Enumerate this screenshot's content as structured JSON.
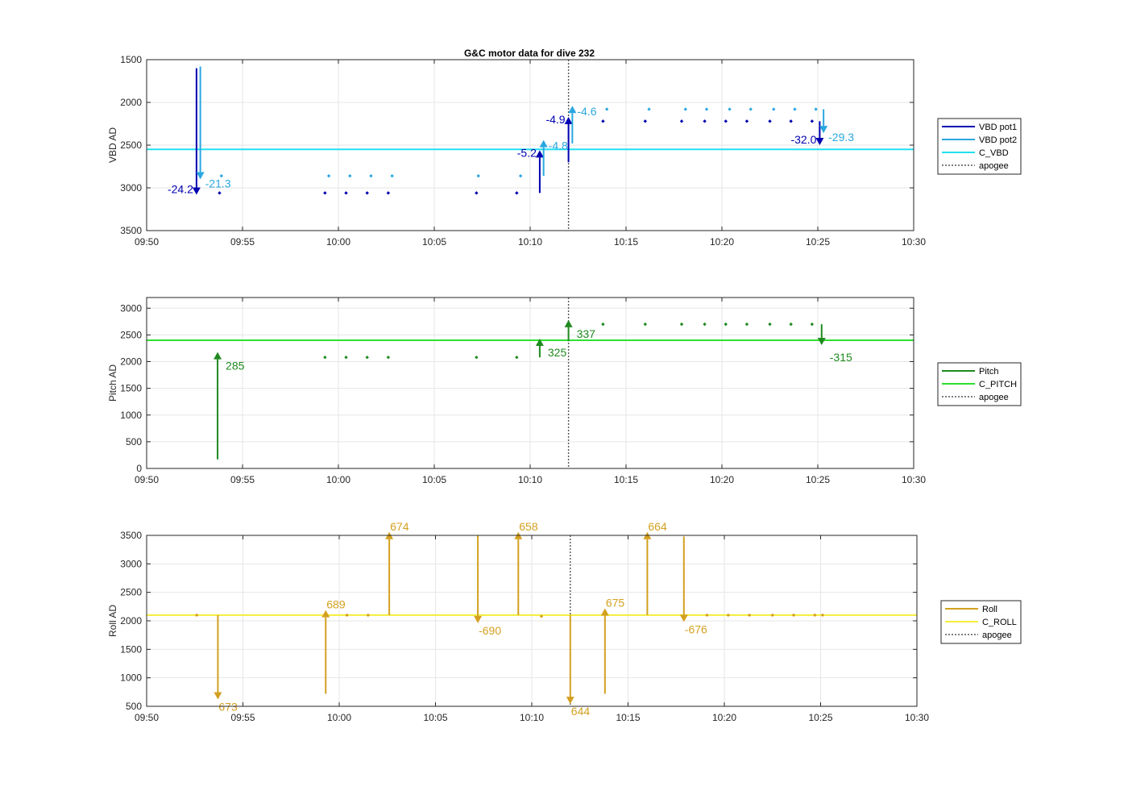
{
  "title": "G&C motor data for dive 232",
  "colors": {
    "vbd_pot1": "#0000b0",
    "vbd_pot2": "#2aa7e0",
    "c_vbd": "#20e0f0",
    "pitch": "#1f8a1f",
    "c_pitch": "#2ee02e",
    "roll": "#d4a020",
    "c_roll": "#f4ee3a",
    "apogee": "#555555",
    "grid": "#e6e6e6"
  },
  "chart_data": [
    {
      "type": "scatter",
      "title": "G&C motor data for dive 232",
      "ylabel": "VBD AD",
      "xlabel": "",
      "xlim": [
        "09:50",
        "10:30"
      ],
      "ylim": [
        1500,
        3500
      ],
      "y_reversed": true,
      "grid": true,
      "legend_position": "outside-right",
      "xticks": [
        "09:50",
        "09:55",
        "10:00",
        "10:05",
        "10:10",
        "10:15",
        "10:20",
        "10:25",
        "10:30"
      ],
      "yticks": [
        1500,
        2000,
        2500,
        3000,
        3500
      ],
      "legend": [
        "VBD pot1",
        "VBD pot2",
        "C_VBD",
        "apogee"
      ],
      "series": [
        {
          "name": "VBD pot1",
          "points": [
            [
              "09:53.8",
              3060
            ],
            [
              "09:59.3",
              3060
            ],
            [
              "10:00.4",
              3060
            ],
            [
              "10:01.5",
              3060
            ],
            [
              "10:02.6",
              3060
            ],
            [
              "10:07.2",
              3060
            ],
            [
              "10:09.3",
              3060
            ],
            [
              "10:13.8",
              2220
            ],
            [
              "10:16.0",
              2220
            ],
            [
              "10:17.9",
              2220
            ],
            [
              "10:19.1",
              2220
            ],
            [
              "10:20.2",
              2220
            ],
            [
              "10:21.3",
              2220
            ],
            [
              "10:22.5",
              2220
            ],
            [
              "10:23.6",
              2220
            ],
            [
              "10:24.7",
              2220
            ]
          ]
        },
        {
          "name": "VBD pot2",
          "points": [
            [
              "09:53.9",
              2860
            ],
            [
              "09:59.5",
              2860
            ],
            [
              "10:00.6",
              2860
            ],
            [
              "10:01.7",
              2860
            ],
            [
              "10:02.8",
              2860
            ],
            [
              "10:07.3",
              2860
            ],
            [
              "10:09.5",
              2860
            ],
            [
              "10:14.0",
              2080
            ],
            [
              "10:16.2",
              2080
            ],
            [
              "10:18.1",
              2080
            ],
            [
              "10:19.2",
              2080
            ],
            [
              "10:20.4",
              2080
            ],
            [
              "10:21.5",
              2080
            ],
            [
              "10:22.7",
              2080
            ],
            [
              "10:23.8",
              2080
            ],
            [
              "10:24.9",
              2080
            ]
          ]
        }
      ],
      "reference": {
        "name": "C_VBD",
        "value": 2550
      },
      "apogee": "10:12",
      "arrows": [
        {
          "series": "VBD pot1",
          "x": "09:52.6",
          "y0": 1600,
          "y1": 3080,
          "label": "-24.2"
        },
        {
          "series": "VBD pot2",
          "x": "09:52.8",
          "y0": 1580,
          "y1": 2900,
          "label": "-21.3"
        },
        {
          "series": "VBD pot1",
          "x": "10:10.5",
          "y0": 3060,
          "y1": 2560,
          "label": "-5.2"
        },
        {
          "series": "VBD pot2",
          "x": "10:10.7",
          "y0": 2860,
          "y1": 2440,
          "label": "-4.8"
        },
        {
          "series": "VBD pot1",
          "x": "10:12.0",
          "y0": 2700,
          "y1": 2170,
          "label": "-4.9"
        },
        {
          "series": "VBD pot2",
          "x": "10:12.2",
          "y0": 2480,
          "y1": 2040,
          "label": "-4.6"
        },
        {
          "series": "VBD pot1",
          "x": "10:25.1",
          "y0": 2220,
          "y1": 2500,
          "label": "-32.0"
        },
        {
          "series": "VBD pot2",
          "x": "10:25.3",
          "y0": 2080,
          "y1": 2360,
          "label": "-29.3"
        }
      ]
    },
    {
      "type": "scatter",
      "title": "",
      "ylabel": "Pitch AD",
      "xlabel": "",
      "xlim": [
        "09:50",
        "10:30"
      ],
      "ylim": [
        0,
        3200
      ],
      "grid": true,
      "legend_position": "outside-right",
      "xticks": [
        "09:50",
        "09:55",
        "10:00",
        "10:05",
        "10:10",
        "10:15",
        "10:20",
        "10:25",
        "10:30"
      ],
      "yticks": [
        0,
        500,
        1000,
        1500,
        2000,
        2500,
        3000
      ],
      "legend": [
        "Pitch",
        "C_PITCH",
        "apogee"
      ],
      "series": [
        {
          "name": "Pitch",
          "points": [
            [
              "09:59.3",
              2080
            ],
            [
              "10:00.4",
              2080
            ],
            [
              "10:01.5",
              2080
            ],
            [
              "10:02.6",
              2080
            ],
            [
              "10:07.2",
              2080
            ],
            [
              "10:09.3",
              2080
            ],
            [
              "10:13.8",
              2700
            ],
            [
              "10:16.0",
              2700
            ],
            [
              "10:17.9",
              2700
            ],
            [
              "10:19.1",
              2700
            ],
            [
              "10:20.2",
              2700
            ],
            [
              "10:21.3",
              2700
            ],
            [
              "10:22.5",
              2700
            ],
            [
              "10:23.6",
              2700
            ],
            [
              "10:24.7",
              2700
            ]
          ]
        }
      ],
      "reference": {
        "name": "C_PITCH",
        "value": 2400
      },
      "apogee": "10:12",
      "arrows": [
        {
          "series": "Pitch",
          "x": "09:53.7",
          "y0": 170,
          "y1": 2180,
          "label": "285"
        },
        {
          "series": "Pitch",
          "x": "10:10.5",
          "y0": 2080,
          "y1": 2430,
          "label": "325"
        },
        {
          "series": "Pitch",
          "x": "10:12.0",
          "y0": 2380,
          "y1": 2780,
          "label": "337"
        },
        {
          "series": "Pitch",
          "x": "10:25.2",
          "y0": 2700,
          "y1": 2310,
          "label": "-315"
        }
      ]
    },
    {
      "type": "scatter",
      "title": "",
      "ylabel": "Roll AD",
      "xlabel": "",
      "xlim": [
        "09:50",
        "10:30"
      ],
      "ylim": [
        500,
        3500
      ],
      "grid": true,
      "legend_position": "outside-right",
      "xticks": [
        "09:50",
        "09:55",
        "10:00",
        "10:05",
        "10:10",
        "10:15",
        "10:20",
        "10:25",
        "10:30"
      ],
      "yticks": [
        500,
        1000,
        1500,
        2000,
        2500,
        3000,
        3500
      ],
      "legend": [
        "Roll",
        "C_ROLL",
        "apogee"
      ],
      "series": [
        {
          "name": "Roll",
          "points": [
            [
              "09:52.6",
              2100
            ],
            [
              "10:00.4",
              2100
            ],
            [
              "10:01.5",
              2100
            ],
            [
              "10:10.5",
              2080
            ],
            [
              "10:19.1",
              2100
            ],
            [
              "10:20.2",
              2100
            ],
            [
              "10:21.3",
              2100
            ],
            [
              "10:22.5",
              2100
            ],
            [
              "10:23.6",
              2100
            ],
            [
              "10:24.7",
              2100
            ],
            [
              "10:25.1",
              2100
            ]
          ]
        }
      ],
      "reference": {
        "name": "C_ROLL",
        "value": 2100
      },
      "apogee": "10:12",
      "arrows": [
        {
          "series": "Roll",
          "x": "09:53.7",
          "y0": 2100,
          "y1": 620,
          "label": "673"
        },
        {
          "series": "Roll",
          "x": "09:59.3",
          "y0": 720,
          "y1": 2190,
          "label": "689"
        },
        {
          "series": "Roll",
          "x": "10:02.6",
          "y0": 2100,
          "y1": 3560,
          "label": "674"
        },
        {
          "series": "Roll",
          "x": "10:07.2",
          "y0": 3500,
          "y1": 1960,
          "label": "-690"
        },
        {
          "series": "Roll",
          "x": "10:09.3",
          "y0": 2100,
          "y1": 3560,
          "label": "658"
        },
        {
          "series": "Roll",
          "x": "10:12.0",
          "y0": 2100,
          "y1": 540,
          "label": "644"
        },
        {
          "series": "Roll",
          "x": "10:13.8",
          "y0": 720,
          "y1": 2220,
          "label": "675"
        },
        {
          "series": "Roll",
          "x": "10:16.0",
          "y0": 2100,
          "y1": 3560,
          "label": "664"
        },
        {
          "series": "Roll",
          "x": "10:17.9",
          "y0": 3480,
          "y1": 1980,
          "label": "-676"
        }
      ]
    }
  ]
}
